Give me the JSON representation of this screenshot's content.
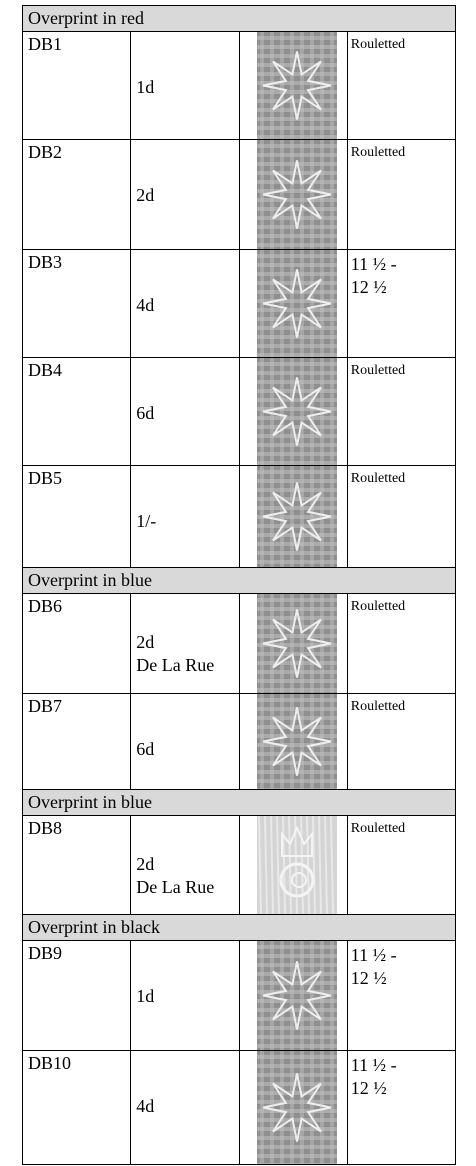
{
  "sections": [
    {
      "title": "Overprint in red",
      "rows": [
        {
          "id": "DB1",
          "value": [
            "1d"
          ],
          "perf": [
            "Rouletted"
          ]
        },
        {
          "id": "DB2",
          "value": [
            "2d"
          ],
          "perf": [
            "Rouletted"
          ]
        },
        {
          "id": "DB3",
          "value": [
            "4d"
          ],
          "perf": [
            "11 ½ -",
            "12 ½"
          ]
        },
        {
          "id": "DB4",
          "value": [
            "6d"
          ],
          "perf": [
            "Rouletted"
          ]
        },
        {
          "id": "DB5",
          "value": [
            "1/-"
          ],
          "perf": [
            "Rouletted"
          ]
        }
      ]
    },
    {
      "title": "Overprint in blue",
      "rows": [
        {
          "id": "DB6",
          "value": [
            "2d",
            "De La Rue"
          ],
          "perf": [
            "Rouletted"
          ]
        },
        {
          "id": "DB7",
          "value": [
            "6d"
          ],
          "perf": [
            "Rouletted"
          ]
        }
      ]
    },
    {
      "title": "Overprint in blue",
      "rows": [
        {
          "id": "DB8",
          "value": [
            "2d",
            "De La Rue"
          ],
          "perf": [
            "Rouletted"
          ]
        }
      ]
    },
    {
      "title": "Overprint in black",
      "rows": [
        {
          "id": "DB9",
          "value": [
            "1d"
          ],
          "perf": [
            "11 ½ -",
            "12 ½"
          ]
        },
        {
          "id": "DB10",
          "value": [
            "4d"
          ],
          "perf": [
            "11 ½ -",
            "12 ½"
          ]
        }
      ]
    }
  ]
}
